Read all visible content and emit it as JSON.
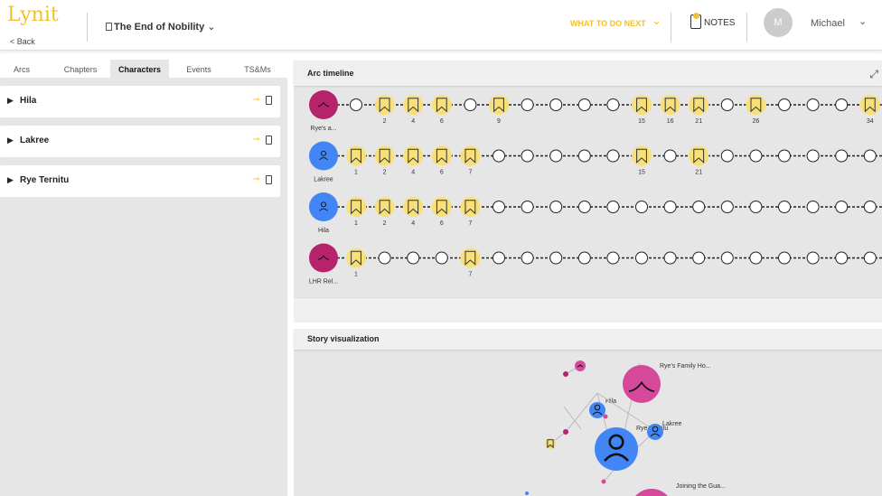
{
  "header": {
    "logo": "Lynit",
    "back": "< Back",
    "story_title": "The End of Nobility",
    "what_to_do_next": "WHAT TO DO NEXT",
    "notes": "NOTES",
    "avatar_initial": "M",
    "user_name": "Michael"
  },
  "left": {
    "tabs": [
      "Arcs",
      "Chapters",
      "Characters",
      "Events",
      "TS&Ms"
    ],
    "active_tab": "Characters",
    "items": [
      "Hila",
      "Lakree",
      "Rye Ternitu"
    ]
  },
  "arc_timeline": {
    "title": "Arc timeline",
    "rows": [
      {
        "name": "Rye's a...",
        "type": "place",
        "nodes": [
          null,
          "2",
          "4",
          "6",
          null,
          "9",
          null,
          null,
          null,
          null,
          "15",
          "16",
          "21",
          null,
          "26",
          null,
          null,
          null,
          "34"
        ]
      },
      {
        "name": "Lakree",
        "type": "character",
        "nodes": [
          "1",
          "2",
          "4",
          "6",
          "7",
          null,
          null,
          null,
          null,
          null,
          "15",
          null,
          "21",
          null,
          null,
          null,
          null,
          null,
          null
        ]
      },
      {
        "name": "Hila",
        "type": "character",
        "nodes": [
          "1",
          "2",
          "4",
          "6",
          "7",
          null,
          null,
          null,
          null,
          null,
          null,
          null,
          null,
          null,
          null,
          null,
          null,
          null,
          null
        ]
      },
      {
        "name": "LHR Rel...",
        "type": "place",
        "nodes": [
          "1",
          null,
          null,
          null,
          "7",
          null,
          null,
          null,
          null,
          null,
          null,
          null,
          null,
          null,
          null,
          null,
          null,
          null,
          null
        ]
      }
    ]
  },
  "story_viz": {
    "title": "Story visualization",
    "labels": {
      "family": "Rye's Family Ho...",
      "hila": "Hila",
      "lakree": "Lakree",
      "rye": "Rye Ternitu",
      "joining": "Joining the Gua..."
    }
  },
  "colors": {
    "accent": "#f2c12e",
    "character": "#4285f4",
    "place": "#b5236b",
    "place_light": "#d6499a",
    "bookmark": "#f7df7a"
  }
}
